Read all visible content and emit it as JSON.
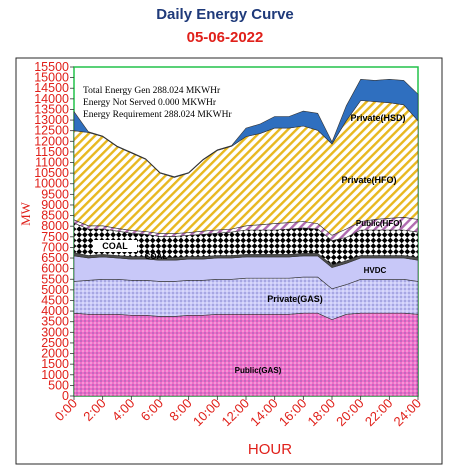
{
  "title": "Daily Energy Curve",
  "subtitle": "05-06-2022",
  "info_lines": [
    "Total Energy Gen 288.024 MKWHr",
    "Energy Not Served   0.000 MKWHr",
    "Energy Requirement      288.024 MKWHr"
  ],
  "chart_data": {
    "type": "area",
    "stacked": true,
    "xlabel": "HOUR",
    "ylabel": "MW",
    "ylim": [
      0,
      15500
    ],
    "x_ticks": [
      "0:00",
      "2:00",
      "4:00",
      "6:00",
      "8:00",
      "10:00",
      "12:00",
      "14:00",
      "16:00",
      "18:00",
      "20:00",
      "22:00",
      "24:00"
    ],
    "y_ticks": [
      0,
      500,
      1000,
      1500,
      2000,
      2500,
      3000,
      3500,
      4000,
      4500,
      5000,
      5500,
      6000,
      6500,
      7000,
      7500,
      8000,
      8500,
      9000,
      9500,
      10000,
      10500,
      11000,
      11500,
      12000,
      12500,
      13000,
      13500,
      14000,
      14500,
      15000,
      15500
    ],
    "x": [
      0,
      1,
      2,
      3,
      4,
      5,
      6,
      7,
      8,
      9,
      10,
      11,
      12,
      13,
      14,
      15,
      16,
      17,
      18,
      19,
      20,
      21,
      22,
      23,
      24
    ],
    "series": [
      {
        "name": "Public(GAS)",
        "color": "#f06ec8",
        "pattern": "dots",
        "values": [
          3900,
          3850,
          3850,
          3850,
          3800,
          3800,
          3750,
          3750,
          3800,
          3800,
          3850,
          3850,
          3850,
          3850,
          3850,
          3850,
          3900,
          3900,
          3600,
          3850,
          3900,
          3900,
          3900,
          3900,
          3850
        ]
      },
      {
        "name": "Private(GAS)",
        "color": "#c8c8f8",
        "pattern": "dots",
        "values": [
          1500,
          1600,
          1650,
          1650,
          1650,
          1650,
          1650,
          1650,
          1650,
          1650,
          1650,
          1650,
          1700,
          1700,
          1700,
          1700,
          1700,
          1700,
          1450,
          1400,
          1600,
          1600,
          1600,
          1600,
          1550
        ]
      },
      {
        "name": "HVDC",
        "color": "#c8c8f8",
        "pattern": "solid",
        "values": [
          1200,
          1050,
          1050,
          1000,
          1000,
          1000,
          1000,
          1000,
          1000,
          1000,
          1000,
          1000,
          1000,
          1000,
          1000,
          1000,
          1000,
          1000,
          1000,
          1000,
          1000,
          1000,
          1000,
          1000,
          1000
        ]
      },
      {
        "name": "",
        "color": "#4d4d4d",
        "pattern": "solid",
        "values": [
          150,
          120,
          120,
          120,
          120,
          120,
          120,
          120,
          120,
          120,
          120,
          120,
          120,
          120,
          120,
          120,
          120,
          120,
          120,
          120,
          120,
          120,
          120,
          120,
          120
        ]
      },
      {
        "name": "COAL",
        "color": "#000000",
        "pattern": "checker",
        "values": [
          1400,
          1250,
          1200,
          1150,
          1100,
          1050,
          1000,
          1000,
          1000,
          1050,
          1050,
          1100,
          1150,
          1150,
          1150,
          1200,
          1200,
          1150,
          1150,
          1100,
          1200,
          1200,
          1200,
          1200,
          1200
        ]
      },
      {
        "name": "Public(HFO)",
        "color": "#b06ab0",
        "pattern": "hatch",
        "values": [
          150,
          150,
          150,
          130,
          130,
          130,
          130,
          130,
          130,
          150,
          150,
          150,
          200,
          250,
          300,
          300,
          300,
          250,
          250,
          400,
          400,
          500,
          550,
          600,
          600
        ]
      },
      {
        "name": "Private(HFO)",
        "color": "#e8b820",
        "pattern": "hatch",
        "values": [
          4200,
          4400,
          4200,
          3850,
          3650,
          3400,
          2850,
          2650,
          2800,
          3350,
          3750,
          3900,
          4200,
          4300,
          4500,
          4450,
          4500,
          4400,
          4300,
          5100,
          5700,
          5550,
          5450,
          5300,
          4650
        ]
      },
      {
        "name": "Private(HSD)",
        "color": "#2f6fbf",
        "pattern": "solid",
        "values": [
          900,
          30,
          30,
          30,
          30,
          30,
          30,
          30,
          30,
          30,
          30,
          30,
          400,
          450,
          550,
          550,
          700,
          800,
          100,
          700,
          1000,
          1000,
          1100,
          1150,
          1250
        ]
      }
    ]
  },
  "series_labels": [
    {
      "name": "Public(GAS)",
      "text": "Public(GAS)",
      "color": "#000000"
    },
    {
      "name": "Private(GAS)",
      "text": "Private(GAS)",
      "color": "#000000"
    },
    {
      "name": "HVDC",
      "text": "HVDC",
      "color": "#000000"
    },
    {
      "name": "COAL",
      "text": "COAL",
      "color": "#000000"
    },
    {
      "name": "COAL2",
      "text": "COAL",
      "color": "#000000"
    },
    {
      "name": "Public(HFO)",
      "text": "Public(HFO)",
      "color": "#000000"
    },
    {
      "name": "Private(HFO)",
      "text": "Private(HFO)",
      "color": "#000000"
    },
    {
      "name": "Private(HSD)",
      "text": "Private(HSD)",
      "color": "#000000"
    }
  ]
}
